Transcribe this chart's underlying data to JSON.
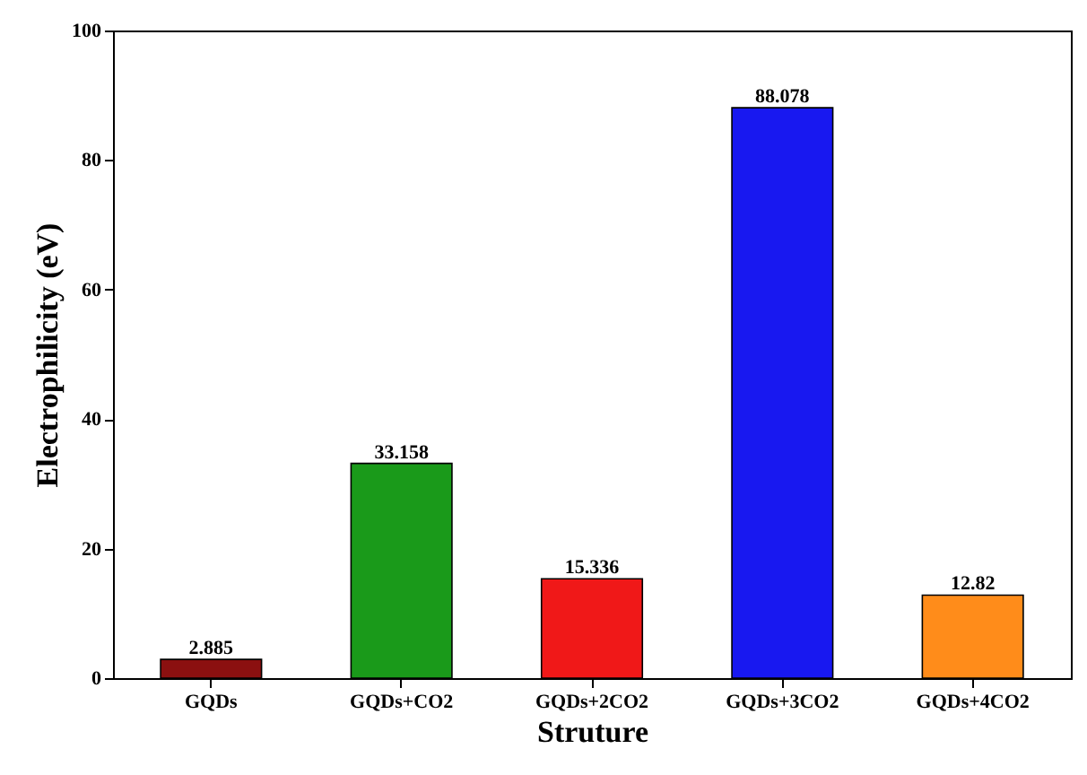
{
  "chart_data": {
    "type": "bar",
    "xlabel": "Struture",
    "ylabel": "Electrophilicity (eV)",
    "categories": [
      "GQDs",
      "GQDs+CO2",
      "GQDs+2CO2",
      "GQDs+3CO2",
      "GQDs+4CO2"
    ],
    "values": [
      2.885,
      33.158,
      15.336,
      88.078,
      12.82
    ],
    "colors": [
      "#8b1010",
      "#1a9a1a",
      "#f01818",
      "#1818f0",
      "#ff8c1a"
    ],
    "ylim": [
      0,
      100
    ],
    "yticks": [
      0,
      20,
      40,
      60,
      80,
      100
    ],
    "grid": false,
    "data_labels": true
  }
}
